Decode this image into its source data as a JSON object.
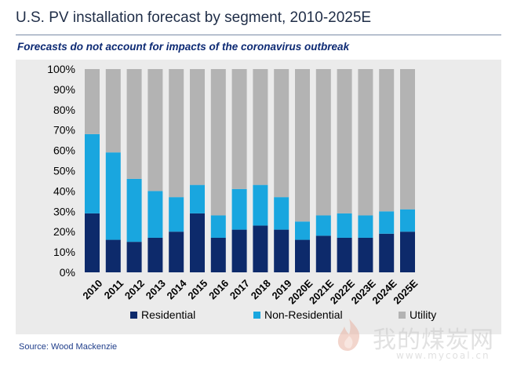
{
  "header": {
    "title": "U.S. PV installation forecast by segment, 2010-2025E",
    "subtitle": "Forecasts do not account for impacts of the coronavirus outbreak"
  },
  "footer": {
    "source": "Source: Wood Mackenzie"
  },
  "watermark": {
    "text": "我的煤炭网",
    "url": "www.mycoal.cn"
  },
  "colors": {
    "residential": "#0d2a6b",
    "non_residential": "#19a6df",
    "utility": "#b3b3b3",
    "panel": "#ebebeb",
    "axis_text": "#000000"
  },
  "chart_data": {
    "type": "bar",
    "stacked": true,
    "percent": true,
    "categories": [
      "2010",
      "2011",
      "2012",
      "2013",
      "2014",
      "2015",
      "2016",
      "2017",
      "2018",
      "2019",
      "2020E",
      "2021E",
      "2022E",
      "2023E",
      "2024E",
      "2025E"
    ],
    "series": [
      {
        "name": "Residential",
        "values": [
          29,
          16,
          15,
          17,
          20,
          29,
          17,
          21,
          23,
          21,
          16,
          18,
          17,
          17,
          19,
          20
        ]
      },
      {
        "name": "Non-Residential",
        "values": [
          39,
          43,
          31,
          23,
          17,
          14,
          11,
          20,
          20,
          16,
          9,
          10,
          12,
          11,
          11,
          11
        ]
      },
      {
        "name": "Utility",
        "values": [
          32,
          41,
          54,
          60,
          63,
          57,
          72,
          59,
          57,
          63,
          75,
          72,
          71,
          72,
          70,
          69
        ]
      }
    ],
    "y_ticks": [
      "0%",
      "10%",
      "20%",
      "30%",
      "40%",
      "50%",
      "60%",
      "70%",
      "80%",
      "90%",
      "100%"
    ],
    "ylim": [
      0,
      100
    ],
    "grid": false,
    "legend": "bottom"
  }
}
